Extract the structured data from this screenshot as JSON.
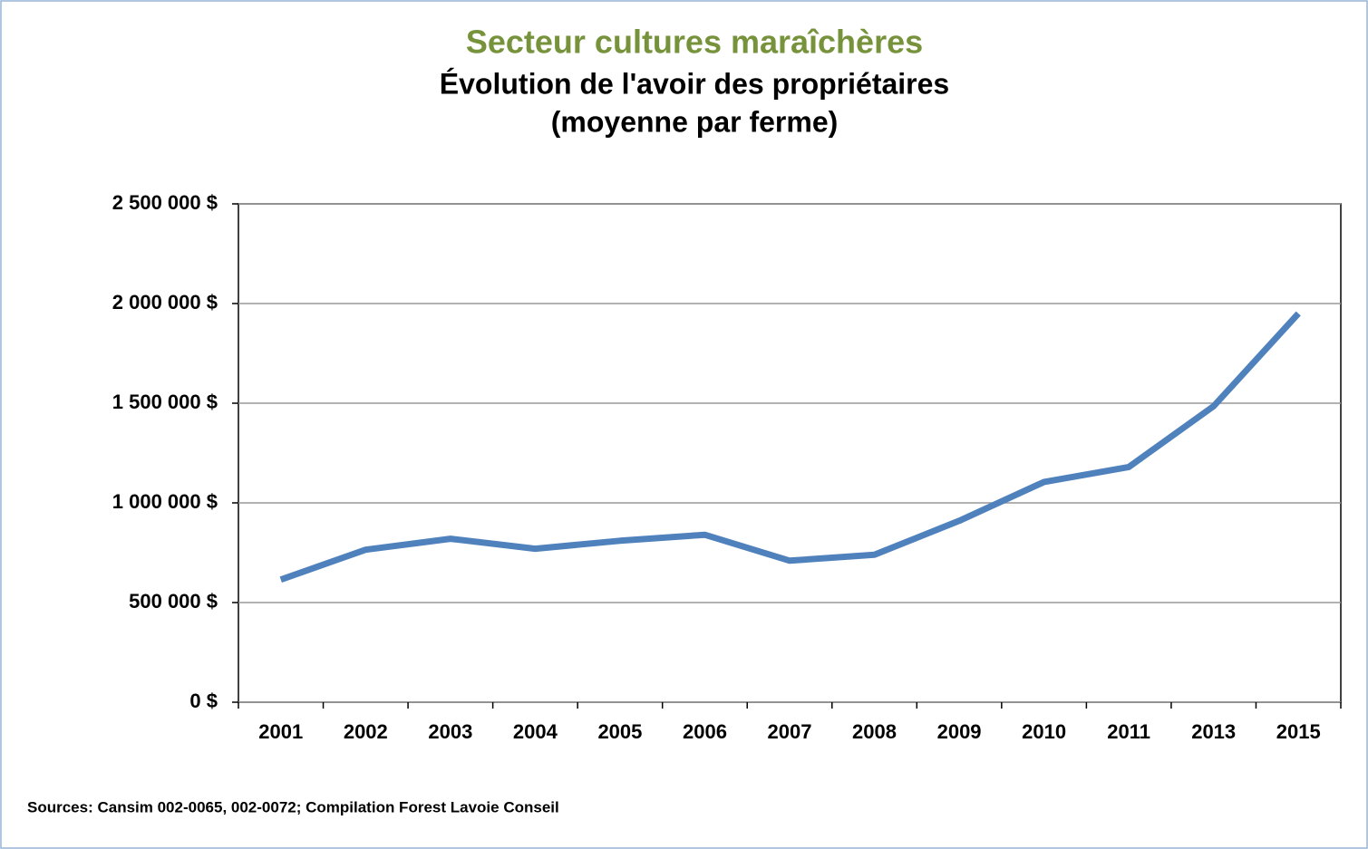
{
  "chart_data": {
    "type": "line",
    "title": "Secteur cultures maraîchères",
    "subtitle": "Évolution de l'avoir des propriétaires",
    "subtitle2": "(moyenne par ferme)",
    "source": "Sources: Cansim 002-0065, 002-0072; Compilation Forest Lavoie Conseil",
    "categories": [
      "2001",
      "2002",
      "2003",
      "2004",
      "2005",
      "2006",
      "2007",
      "2008",
      "2009",
      "2010",
      "2011",
      "2013",
      "2015"
    ],
    "series": [
      {
        "name": "Avoir des propriétaires",
        "color": "#4f81bd",
        "values": [
          615000,
          765000,
          820000,
          770000,
          810000,
          840000,
          710000,
          740000,
          910000,
          1105000,
          1180000,
          1485000,
          1950000
        ]
      }
    ],
    "ylim": [
      0,
      2500000
    ],
    "yticks": [
      {
        "value": 0,
        "label": "0 $"
      },
      {
        "value": 500000,
        "label": "500 000 $"
      },
      {
        "value": 1000000,
        "label": "1 000 000 $"
      },
      {
        "value": 1500000,
        "label": "1 500 000 $"
      },
      {
        "value": 2000000,
        "label": "2 000 000 $"
      },
      {
        "value": 2500000,
        "label": "2 500 000 $"
      }
    ],
    "grid": true
  }
}
